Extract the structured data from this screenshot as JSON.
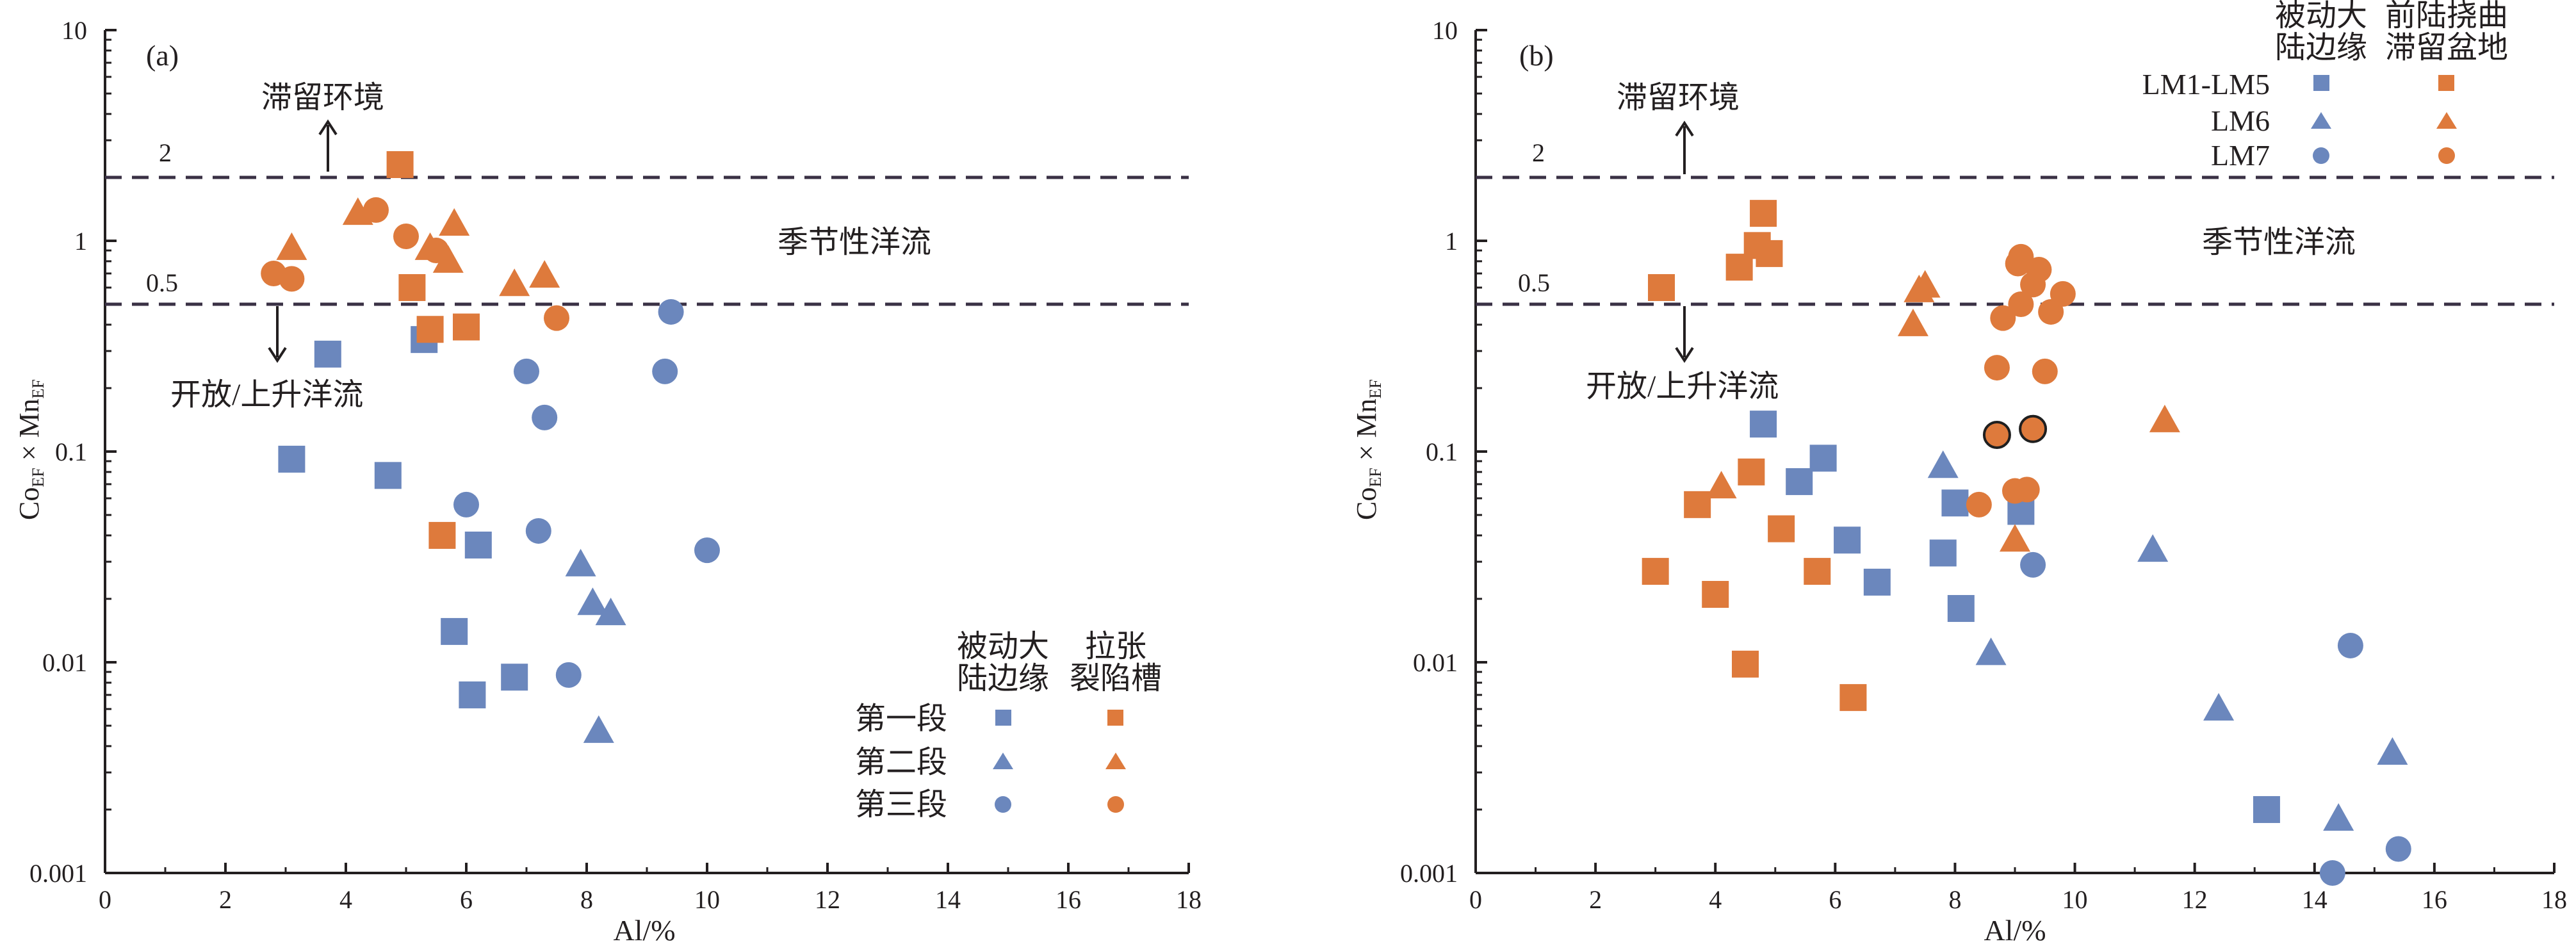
{
  "colors": {
    "passive": "#6b87bd",
    "active": "#de7a3c",
    "outline": "#1f1f1f"
  },
  "panels": [
    {
      "panel_label": "(a)",
      "ylabel_main": "Co",
      "ylabel_sub1": "EF",
      "ylabel_mid": " × Mn",
      "ylabel_sub2": "EF",
      "xlabel": "Al/%",
      "ref_labels": [
        "2",
        "0.5"
      ],
      "zone_top": "滞留环境",
      "zone_middle": "季节性洋流",
      "zone_bottom": "开放/上升洋流",
      "legend": {
        "header_passive": [
          "被动大",
          "陆边缘"
        ],
        "header_active": [
          "拉张",
          "裂陷槽"
        ],
        "rows": [
          "第一段",
          "第二段",
          "第三段"
        ]
      }
    },
    {
      "panel_label": "(b)",
      "ylabel_main": "Co",
      "ylabel_sub1": "EF",
      "ylabel_mid": " × Mn",
      "ylabel_sub2": "EF",
      "xlabel": "Al/%",
      "ref_labels": [
        "2",
        "0.5"
      ],
      "zone_top": "滞留环境",
      "zone_middle": "季节性洋流",
      "zone_bottom": "开放/上升洋流",
      "legend": {
        "header_passive": [
          "被动大",
          "陆边缘"
        ],
        "header_active": [
          "前陆挠曲",
          "滞留盆地"
        ],
        "rows": [
          "LM1-LM5",
          "LM6",
          "LM7"
        ]
      }
    }
  ],
  "chart_data": [
    {
      "type": "scatter",
      "xlabel": "Al/%",
      "ylabel": "CoEF × MnEF",
      "xlim": [
        0,
        18
      ],
      "ylim": [
        0.001,
        10
      ],
      "yscale": "log",
      "xticks": [
        "0",
        "2",
        "4",
        "6",
        "8",
        "10",
        "12",
        "14",
        "16",
        "18"
      ],
      "yticks": [
        "0.001",
        "0.01",
        "0.1",
        "1",
        "10"
      ],
      "reference_lines": [
        2,
        0.5
      ],
      "grid": false,
      "legend_position": "bottom-right",
      "series": [
        {
          "name": "第一段",
          "group": "passive",
          "marker": "square",
          "points": [
            [
              3.1,
              0.092
            ],
            [
              3.7,
              0.29
            ],
            [
              4.7,
              0.077
            ],
            [
              5.3,
              0.34
            ],
            [
              5.8,
              0.014
            ],
            [
              6.1,
              0.007
            ],
            [
              6.2,
              0.036
            ],
            [
              6.8,
              0.0085
            ]
          ]
        },
        {
          "name": "第二段",
          "group": "passive",
          "marker": "triangle",
          "points": [
            [
              7.9,
              0.029
            ],
            [
              8.1,
              0.019
            ],
            [
              8.2,
              0.0047
            ],
            [
              8.4,
              0.017
            ]
          ]
        },
        {
          "name": "第三段",
          "group": "passive",
          "marker": "circle",
          "points": [
            [
              6.0,
              0.056
            ],
            [
              7.0,
              0.24
            ],
            [
              7.2,
              0.042
            ],
            [
              7.3,
              0.145
            ],
            [
              7.7,
              0.0087
            ],
            [
              9.3,
              0.24
            ],
            [
              9.4,
              0.46
            ],
            [
              10.0,
              0.034
            ]
          ]
        },
        {
          "name": "第一段",
          "group": "active",
          "marker": "square",
          "points": [
            [
              4.9,
              2.3
            ],
            [
              5.1,
              0.6
            ],
            [
              5.4,
              0.38
            ],
            [
              5.6,
              0.04
            ],
            [
              6.0,
              0.39
            ]
          ]
        },
        {
          "name": "第二段",
          "group": "active",
          "marker": "triangle",
          "points": [
            [
              3.1,
              0.92
            ],
            [
              4.2,
              1.35
            ],
            [
              5.4,
              0.92
            ],
            [
              5.7,
              0.8
            ],
            [
              5.8,
              1.2
            ],
            [
              6.8,
              0.62
            ],
            [
              7.3,
              0.68
            ]
          ]
        },
        {
          "name": "第三段",
          "group": "active",
          "marker": "circle",
          "points": [
            [
              2.8,
              0.7
            ],
            [
              3.1,
              0.66
            ],
            [
              4.5,
              1.4
            ],
            [
              5.0,
              1.05
            ],
            [
              5.5,
              0.9
            ],
            [
              7.5,
              0.43
            ]
          ]
        }
      ]
    },
    {
      "type": "scatter",
      "xlabel": "Al/%",
      "ylabel": "CoEF × MnEF",
      "xlim": [
        0,
        18
      ],
      "ylim": [
        0.001,
        10
      ],
      "yscale": "log",
      "xticks": [
        "0",
        "2",
        "4",
        "6",
        "8",
        "10",
        "12",
        "14",
        "16",
        "18"
      ],
      "yticks": [
        "0.001",
        "0.01",
        "0.1",
        "1",
        "10"
      ],
      "reference_lines": [
        2,
        0.5
      ],
      "grid": false,
      "legend_position": "top-right",
      "series": [
        {
          "name": "LM1-LM5",
          "group": "passive",
          "marker": "square",
          "points": [
            [
              4.8,
              0.135
            ],
            [
              5.4,
              0.072
            ],
            [
              5.8,
              0.093
            ],
            [
              6.2,
              0.038
            ],
            [
              6.7,
              0.024
            ],
            [
              7.8,
              0.033
            ],
            [
              8.0,
              0.057
            ],
            [
              8.1,
              0.018
            ],
            [
              9.1,
              0.052
            ],
            [
              13.2,
              0.002
            ]
          ]
        },
        {
          "name": "LM6",
          "group": "passive",
          "marker": "triangle",
          "points": [
            [
              7.8,
              0.085
            ],
            [
              8.6,
              0.011
            ],
            [
              11.3,
              0.034
            ],
            [
              12.4,
              0.006
            ],
            [
              14.4,
              0.0018
            ],
            [
              15.3,
              0.0037
            ]
          ]
        },
        {
          "name": "LM7",
          "group": "passive",
          "marker": "circle",
          "points": [
            [
              9.3,
              0.029
            ],
            [
              14.3,
              0.001
            ],
            [
              14.6,
              0.012
            ],
            [
              15.4,
              0.0013
            ]
          ]
        },
        {
          "name": "LM1-LM5",
          "group": "active",
          "marker": "square",
          "points": [
            [
              3.0,
              0.027
            ],
            [
              3.1,
              0.6
            ],
            [
              3.7,
              0.056
            ],
            [
              4.0,
              0.021
            ],
            [
              4.4,
              0.75
            ],
            [
              4.5,
              0.0098
            ],
            [
              4.6,
              0.08
            ],
            [
              4.7,
              0.95
            ],
            [
              4.8,
              1.35
            ],
            [
              4.9,
              0.87
            ],
            [
              5.1,
              0.043
            ],
            [
              5.7,
              0.027
            ],
            [
              6.3,
              0.0068
            ]
          ]
        },
        {
          "name": "LM6",
          "group": "active",
          "marker": "triangle",
          "points": [
            [
              4.1,
              0.068
            ],
            [
              7.3,
              0.4
            ],
            [
              7.4,
              0.58
            ],
            [
              7.5,
              0.61
            ],
            [
              9.0,
              0.038
            ],
            [
              11.5,
              0.14
            ]
          ]
        },
        {
          "name": "LM7",
          "group": "active",
          "marker": "circle",
          "points": [
            [
              8.4,
              0.056
            ],
            [
              8.7,
              0.12
            ],
            [
              8.7,
              0.25
            ],
            [
              8.8,
              0.43
            ],
            [
              9.0,
              0.065
            ],
            [
              9.05,
              0.78
            ],
            [
              9.1,
              0.84
            ],
            [
              9.1,
              0.5
            ],
            [
              9.2,
              0.066
            ],
            [
              9.3,
              0.62
            ],
            [
              9.3,
              0.128
            ],
            [
              9.4,
              0.73
            ],
            [
              9.5,
              0.24
            ],
            [
              9.6,
              0.46
            ],
            [
              9.8,
              0.56
            ]
          ],
          "outlined_points": [
            [
              8.7,
              0.12
            ],
            [
              9.3,
              0.128
            ]
          ]
        }
      ]
    }
  ]
}
